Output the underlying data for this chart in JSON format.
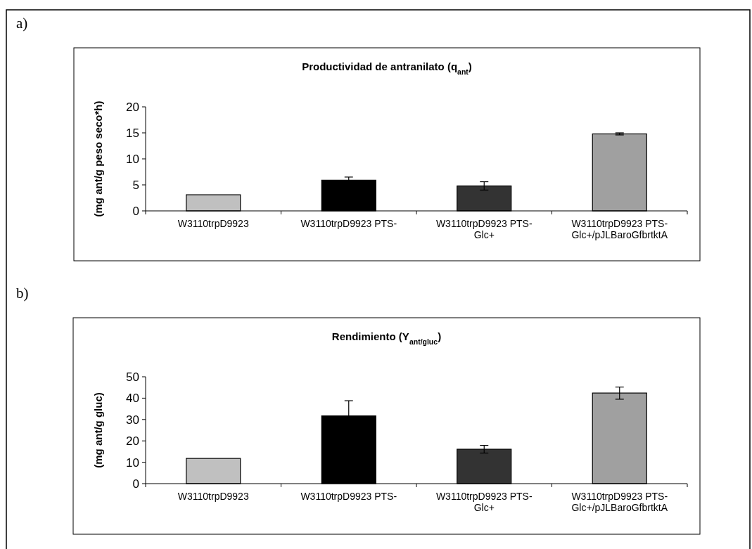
{
  "chart_data": [
    {
      "type": "bar",
      "title": "Productividad de antranilato (q$_{ant}$)",
      "ylabel": "(mg ant/g peso seco*h)",
      "annotations": [
        "a)"
      ],
      "categories": [
        "W3110trpD9923",
        "W3110trpD9923 PTS-",
        "W3110trpD9923 PTS-Glc+",
        "W3110trpD9923 PTS-Glc+/pJLBaroGfbrtktA"
      ],
      "values": [
        3.1,
        5.9,
        4.8,
        14.8
      ],
      "colors": [
        "#c0c0c0",
        "#000000",
        "#333333",
        "#a0a0a0"
      ],
      "errors": [
        null,
        [
          5.9,
          6.5
        ],
        0.8,
        0.2
      ],
      "ylim": [
        0,
        20
      ],
      "yticks": [
        0,
        5,
        10,
        15,
        20
      ],
      "grid": false
    },
    {
      "type": "bar",
      "title": "Rendimiento (Y$_{ant/gluc}$)",
      "ylabel": "(mg ant/g gluc)",
      "annotations": [
        "b)"
      ],
      "categories": [
        "W3110trpD9923",
        "W3110trpD9923 PTS-",
        "W3110trpD9923 PTS-Glc+",
        "W3110trpD9923 PTS-Glc+/pJLBaroGfbrtktA"
      ],
      "values": [
        11.8,
        31.7,
        16.1,
        42.4
      ],
      "colors": [
        "#c0c0c0",
        "#000000",
        "#333333",
        "#a0a0a0"
      ],
      "errors": [
        null,
        [
          31.7,
          38.8
        ],
        1.8,
        [
          39.5,
          45.2
        ]
      ],
      "ylim": [
        0,
        50
      ],
      "yticks": [
        0,
        10,
        20,
        30,
        40,
        50
      ],
      "grid": false
    }
  ]
}
